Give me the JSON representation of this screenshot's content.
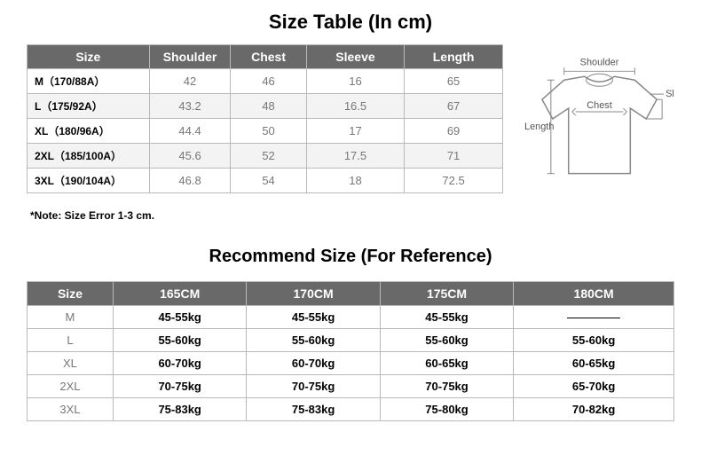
{
  "title1": "Size Table (In cm)",
  "sizeTable": {
    "headers": [
      "Size",
      "Shoulder",
      "Chest",
      "Sleeve",
      "Length"
    ],
    "rows": [
      [
        "M（170/88A）",
        "42",
        "46",
        "16",
        "65"
      ],
      [
        "L（175/92A）",
        "43.2",
        "48",
        "16.5",
        "67"
      ],
      [
        "XL（180/96A）",
        "44.4",
        "50",
        "17",
        "69"
      ],
      [
        "2XL（185/100A）",
        "45.6",
        "52",
        "17.5",
        "71"
      ],
      [
        "3XL（190/104A）",
        "46.8",
        "54",
        "18",
        "72.5"
      ]
    ],
    "colWidths": [
      "136",
      "86",
      "82",
      "110",
      "110"
    ],
    "header_bg": "#696969",
    "header_fg": "#ffffff",
    "border_color": "#b9b9b9"
  },
  "note": "*Note: Size Error 1-3 cm.",
  "diagram": {
    "labels": {
      "shoulder": "Shoulder",
      "sleeve": "Sleeve",
      "chest": "Chest",
      "length": "Length"
    }
  },
  "title2": "Recommend Size (For Reference)",
  "recTable": {
    "headers": [
      "Size",
      "165CM",
      "170CM",
      "175CM",
      "180CM"
    ],
    "rows": [
      [
        "M",
        "45-55kg",
        "45-55kg",
        "45-55kg",
        "—dash—"
      ],
      [
        "L",
        "55-60kg",
        "55-60kg",
        "55-60kg",
        "55-60kg"
      ],
      [
        "XL",
        "60-70kg",
        "60-70kg",
        "60-65kg",
        "60-65kg"
      ],
      [
        "2XL",
        "70-75kg",
        "70-75kg",
        "70-75kg",
        "65-70kg"
      ],
      [
        "3XL",
        "75-83kg",
        "75-83kg",
        "75-80kg",
        "70-82kg"
      ]
    ]
  }
}
